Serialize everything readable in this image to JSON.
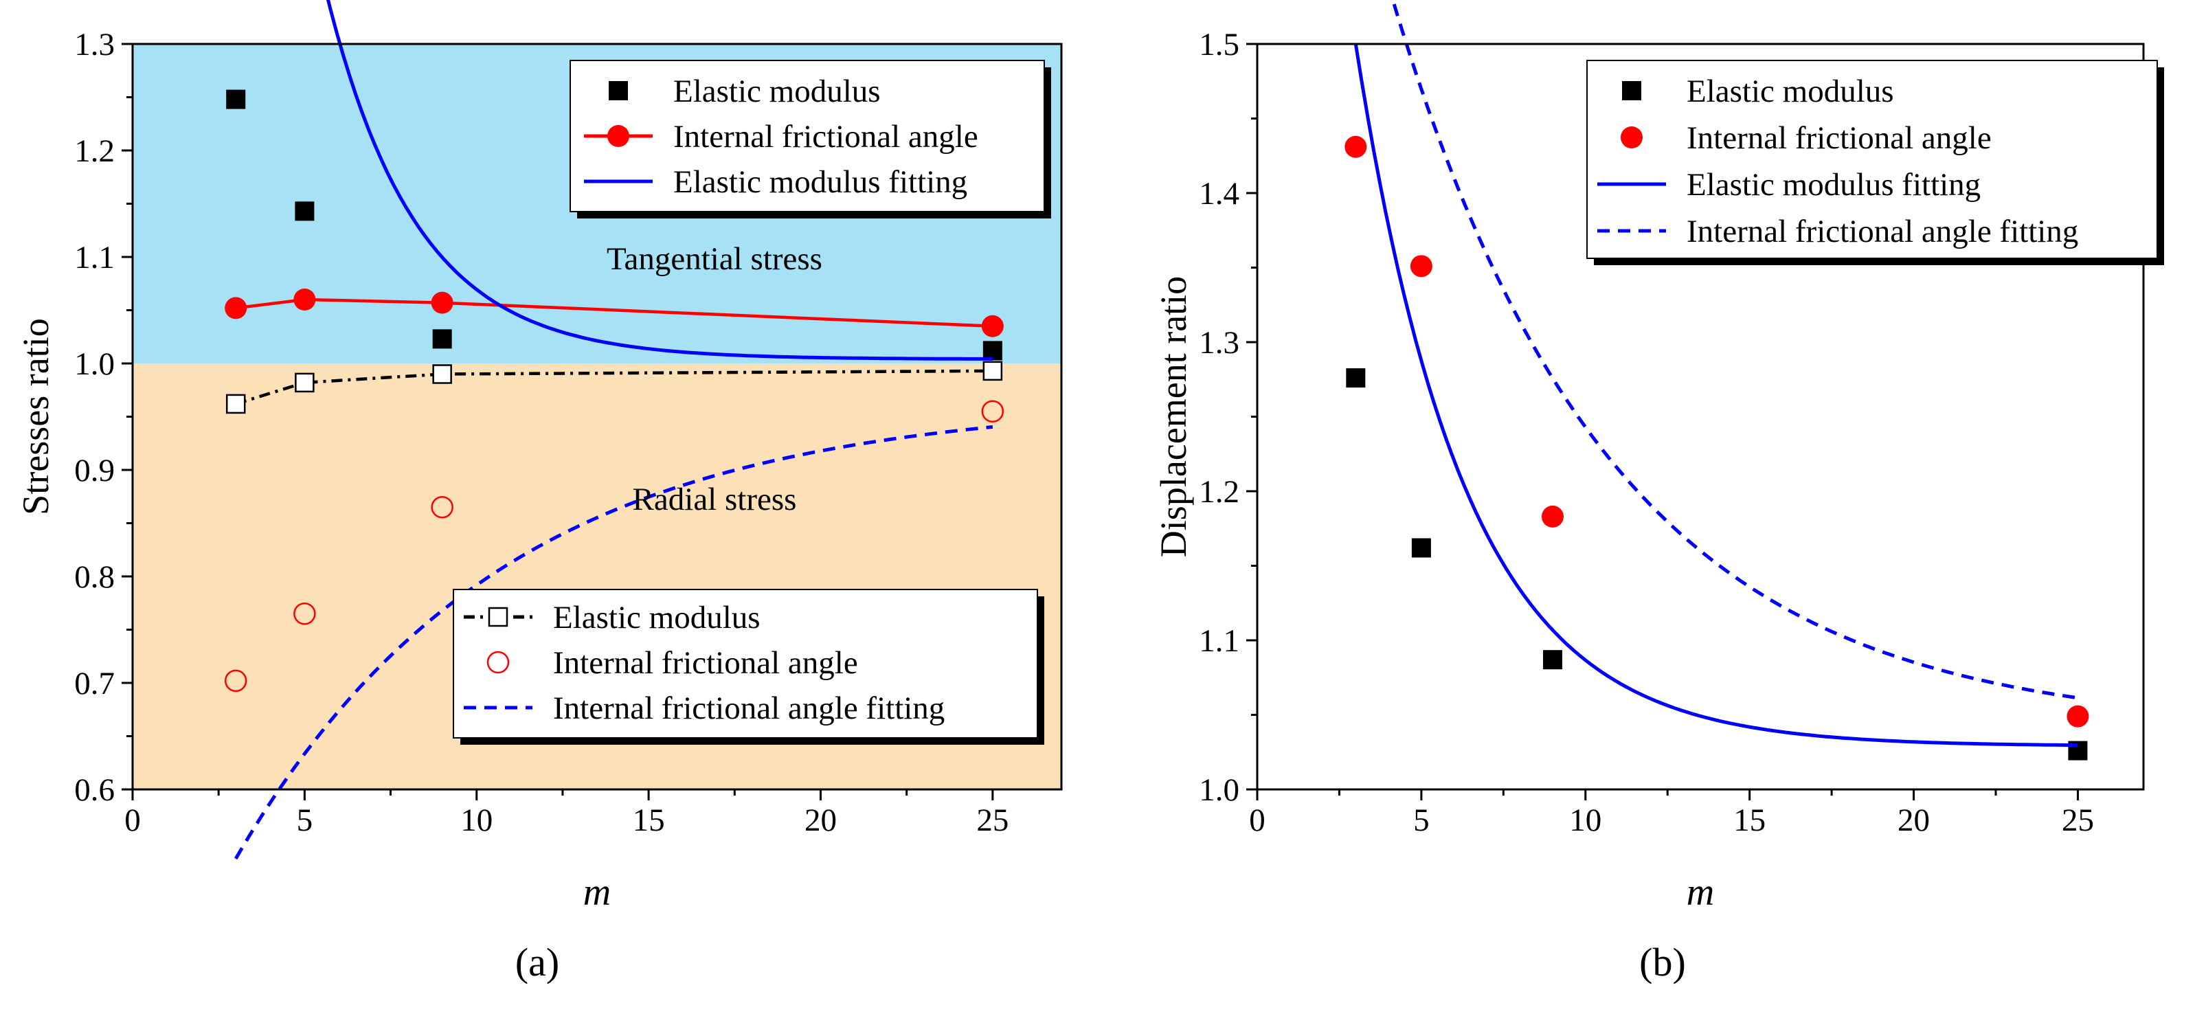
{
  "chart_data": [
    {
      "panel_label": "(a)",
      "type": "scatter",
      "xlabel": "m",
      "ylabel": "Stresses ratio",
      "xlim": [
        0,
        27
      ],
      "ylim": [
        0.6,
        1.3
      ],
      "x_ticks": [
        0,
        5,
        10,
        15,
        20,
        25
      ],
      "y_ticks": [
        0.6,
        0.7,
        0.8,
        0.9,
        1.0,
        1.1,
        1.2,
        1.3
      ],
      "x_tick_labels": [
        "0",
        "5",
        "10",
        "15",
        "20",
        "25"
      ],
      "y_tick_labels": [
        "0.6",
        "0.7",
        "0.8",
        "0.9",
        "1.0",
        "1.1",
        "1.2",
        "1.3"
      ],
      "grid": false,
      "regions": [
        {
          "label": "Tangential stress",
          "y_range": [
            1.0,
            1.3
          ],
          "color": "#a6e1f5"
        },
        {
          "label": "Radial stress",
          "y_range": [
            0.6,
            1.0
          ],
          "color": "#fce1b8"
        }
      ],
      "series": [
        {
          "name": "Elastic modulus",
          "marker": "square-filled",
          "line": "none",
          "color": "#000000",
          "x": [
            3,
            5,
            9,
            25
          ],
          "y": [
            1.248,
            1.143,
            1.023,
            1.012
          ]
        },
        {
          "name": "Internal frictional angle",
          "marker": "circle-filled",
          "line": "solid",
          "color": "#ff0000",
          "x": [
            3,
            5,
            9,
            25
          ],
          "y": [
            1.052,
            1.06,
            1.057,
            1.035
          ]
        },
        {
          "name": "Elastic modulus fitting",
          "marker": "none",
          "line": "solid",
          "color": "#0000ff",
          "fit": {
            "form": "exp",
            "a": 1.004,
            "b": 0.935,
            "c": 0.38
          },
          "x_range": [
            3,
            25
          ]
        },
        {
          "name": "Elastic modulus",
          "marker": "square-open",
          "line": "dash-dot",
          "color": "#000000",
          "x": [
            3,
            5,
            9,
            25
          ],
          "y": [
            0.962,
            0.982,
            0.99,
            0.993
          ]
        },
        {
          "name": "Internal frictional angle",
          "marker": "circle-open",
          "line": "none",
          "color": "#ff0000",
          "x": [
            3,
            5,
            9,
            25
          ],
          "y": [
            0.702,
            0.765,
            0.865,
            0.955
          ]
        },
        {
          "name": "Internal frictional angle fitting",
          "marker": "none",
          "line": "dashed",
          "color": "#0000ff",
          "fit": {
            "form": "exp",
            "a": 0.965,
            "b": -0.43,
            "c": 0.13
          },
          "x_range": [
            3,
            25
          ]
        }
      ],
      "legends": [
        {
          "placement": "top-right",
          "entries": [
            "Elastic modulus",
            "Internal frictional angle",
            "Elastic modulus fitting"
          ]
        },
        {
          "placement": "bottom-right",
          "entries": [
            "Elastic modulus",
            "Internal frictional angle",
            "Internal frictional angle fitting"
          ]
        }
      ]
    },
    {
      "panel_label": "(b)",
      "type": "scatter",
      "xlabel": "m",
      "ylabel": "Displacement ratio",
      "xlim": [
        0,
        27
      ],
      "ylim": [
        1.0,
        1.5
      ],
      "x_ticks": [
        0,
        5,
        10,
        15,
        20,
        25
      ],
      "y_ticks": [
        1.0,
        1.1,
        1.2,
        1.3,
        1.4,
        1.5
      ],
      "x_tick_labels": [
        "0",
        "5",
        "10",
        "15",
        "20",
        "25"
      ],
      "y_tick_labels": [
        "1.0",
        "1.1",
        "1.2",
        "1.3",
        "1.4",
        "1.5"
      ],
      "grid": false,
      "series": [
        {
          "name": "Elastic modulus",
          "marker": "square-filled",
          "line": "none",
          "color": "#000000",
          "x": [
            3,
            5,
            9,
            25
          ],
          "y": [
            1.276,
            1.162,
            1.087,
            1.026
          ]
        },
        {
          "name": "Internal frictional angle",
          "marker": "circle-filled",
          "line": "none",
          "color": "#ff0000",
          "x": [
            3,
            5,
            9,
            25
          ],
          "y": [
            1.431,
            1.351,
            1.183,
            1.049
          ]
        },
        {
          "name": "Elastic modulus fitting",
          "marker": "none",
          "line": "solid",
          "color": "#0000ff",
          "fit": {
            "form": "exp",
            "a": 1.029,
            "b": 0.471,
            "c": 0.3
          },
          "x_range": [
            3,
            25
          ]
        },
        {
          "name": "Internal frictional angle fitting",
          "marker": "none",
          "line": "dashed",
          "color": "#0000ff",
          "fit": {
            "form": "exp",
            "a": 1.04,
            "b": 0.58,
            "c": 0.15
          },
          "x_range": [
            3,
            25
          ]
        }
      ],
      "legends": [
        {
          "placement": "top-right",
          "entries": [
            "Elastic modulus",
            "Internal frictional angle",
            "Elastic modulus fitting",
            "Internal frictional angle fitting"
          ]
        }
      ]
    }
  ]
}
